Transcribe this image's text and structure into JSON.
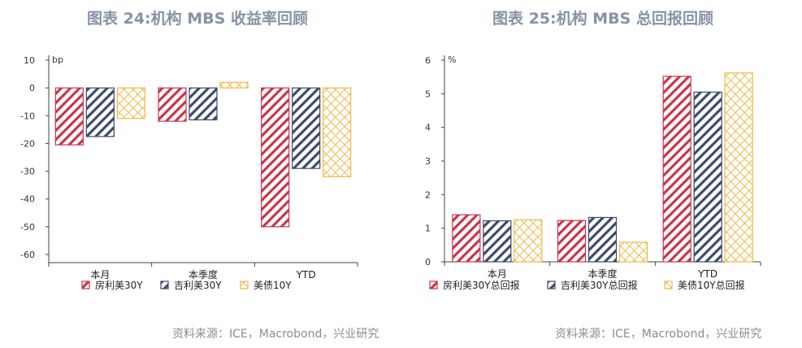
{
  "left": {
    "title": "图表 24:机构 MBS 收益率回顾",
    "source": "资料来源：ICE，Macrobond，兴业研究"
  },
  "right": {
    "title": "图表 25:机构 MBS 总回报回顾",
    "source": "资料来源：ICE，Macrobond，兴业研究"
  },
  "colors": {
    "red": "#c9354a",
    "navy": "#3d4a6a",
    "gold": "#f0b84a"
  },
  "chart_data": [
    {
      "type": "bar",
      "title": "图表 24:机构 MBS 收益率回顾",
      "unit": "bp",
      "categories": [
        "本月",
        "本季度",
        "YTD"
      ],
      "ylim": [
        -60,
        10
      ],
      "yticks": [
        10,
        0,
        -10,
        -20,
        -30,
        -40,
        -50,
        -60
      ],
      "grid": false,
      "legend_position": "bottom",
      "series": [
        {
          "name": "房利美30Y",
          "color": "#c9354a",
          "pattern": "diagonal",
          "values": [
            -20.5,
            -12,
            -50
          ]
        },
        {
          "name": "吉利美30Y",
          "color": "#3d4a6a",
          "pattern": "diagonal",
          "values": [
            -17.5,
            -11.5,
            -29
          ]
        },
        {
          "name": "美债10Y",
          "color": "#f0b84a",
          "pattern": "crosshatch",
          "values": [
            -11,
            2,
            -32
          ]
        }
      ]
    },
    {
      "type": "bar",
      "title": "图表 25:机构 MBS 总回报回顾",
      "unit": "%",
      "categories": [
        "本月",
        "本季度",
        "YTD"
      ],
      "ylim": [
        0,
        6
      ],
      "yticks": [
        0,
        1,
        2,
        3,
        4,
        5,
        6
      ],
      "grid": false,
      "legend_position": "bottom",
      "series": [
        {
          "name": "房利美30Y总回报",
          "color": "#c9354a",
          "pattern": "diagonal",
          "values": [
            1.4,
            1.23,
            5.52
          ]
        },
        {
          "name": "吉利美30Y总回报",
          "color": "#3d4a6a",
          "pattern": "diagonal",
          "values": [
            1.22,
            1.32,
            5.05
          ]
        },
        {
          "name": "美债10Y总回报",
          "color": "#f0b84a",
          "pattern": "crosshatch",
          "values": [
            1.25,
            0.58,
            5.62
          ]
        }
      ]
    }
  ]
}
